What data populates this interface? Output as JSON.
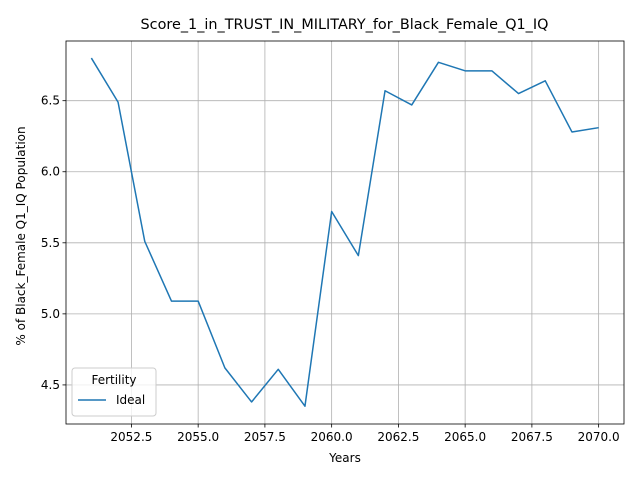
{
  "chart_data": {
    "type": "line",
    "title": "Score_1_in_TRUST_IN_MILITARY_for_Black_Female_Q1_IQ",
    "xlabel": "Years",
    "ylabel": "% of Black_Female Q1_IQ Population",
    "xlim": [
      2050.05,
      2070.95
    ],
    "ylim": [
      4.225,
      6.92
    ],
    "x_ticks": [
      2052.5,
      2055.0,
      2057.5,
      2060.0,
      2062.5,
      2065.0,
      2067.5,
      2070.0
    ],
    "x_tick_labels": [
      "2052.5",
      "2055.0",
      "2057.5",
      "2060.0",
      "2062.5",
      "2065.0",
      "2067.5",
      "2070.0"
    ],
    "y_ticks": [
      4.5,
      5.0,
      5.5,
      6.0,
      6.5
    ],
    "y_tick_labels": [
      "4.5",
      "5.0",
      "5.5",
      "6.0",
      "6.5"
    ],
    "grid": true,
    "legend": {
      "title": "Fertility",
      "placement": "lower-left"
    },
    "series": [
      {
        "name": "Ideal",
        "color": "#1f77b4",
        "x": [
          2051,
          2052,
          2053,
          2054,
          2055,
          2056,
          2057,
          2058,
          2059,
          2060,
          2061,
          2062,
          2063,
          2064,
          2065,
          2066,
          2067,
          2068,
          2069,
          2070
        ],
        "y": [
          6.8,
          6.49,
          5.51,
          5.09,
          5.09,
          4.62,
          4.38,
          4.61,
          4.35,
          5.72,
          5.41,
          6.57,
          6.47,
          6.77,
          6.71,
          6.71,
          6.55,
          6.64,
          6.28,
          6.31
        ]
      }
    ]
  }
}
